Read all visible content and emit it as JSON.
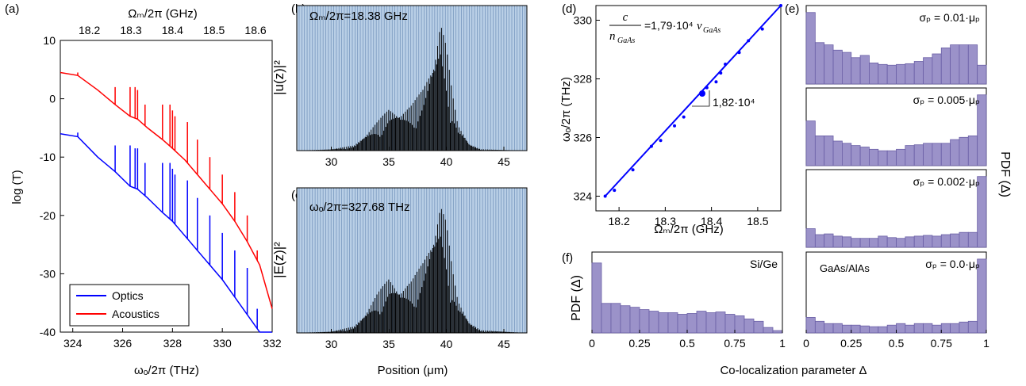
{
  "colors": {
    "optics": "#0000ff",
    "acoustics": "#ff0000",
    "stripe": "#9db8d8",
    "stripe_dark": "#6e8fb8",
    "hist_fill": "#9b92c9",
    "hist_edge": "#6a5fa6",
    "fit_line": "#0000ff"
  },
  "panels": {
    "a": {
      "tag": "(a)",
      "top_axis_label": "Ωₘ/2π (GHz)",
      "xlabel": "ωₒ/2π (THz)",
      "ylabel": "log (T)"
    },
    "b": {
      "tag": "(b)",
      "annotation": "Ωₘ/2π=18.38 GHz",
      "ylabel": "|u(z)|²"
    },
    "c": {
      "tag": "(c)",
      "annotation": "ωₒ/2π=327.68 THz",
      "ylabel": "|E(z)|²",
      "xlabel": "Position (μm)"
    },
    "d": {
      "tag": "(d)",
      "xlabel": "Ωₘ/2π (GHz)",
      "ylabel": "ωₒ/2π (THz)",
      "formula_num": "c",
      "formula_den": "n",
      "formula_den_sub": "GaAs",
      "formula_rhs": "=1,79·10⁴",
      "formula_v": "v",
      "formula_v_sub": "GaAs",
      "slope_label": "1,82·10⁴"
    },
    "e": {
      "tag": "(e)",
      "ylabel": "PDF (Δ)",
      "material": "GaAs/AlAs"
    },
    "f": {
      "tag": "(f)",
      "ylabel": "PDF (Δ)",
      "material": "Si/Ge"
    },
    "shared_xlabel": "Co-localization parameter Δ"
  },
  "chart_data": [
    {
      "id": "a",
      "type": "line",
      "xlabel": "ωₒ/2π (THz)",
      "ylabel": "log (T)",
      "xlim": [
        323.5,
        332
      ],
      "ylim": [
        -40,
        10
      ],
      "x_ticks": [
        324,
        326,
        328,
        330,
        332
      ],
      "y_ticks": [
        10,
        0,
        -10,
        -20,
        -30,
        -40
      ],
      "top_axis": {
        "label": "Ωₘ/2π (GHz)",
        "ticks": [
          18.2,
          18.3,
          18.4,
          18.5,
          18.6
        ]
      },
      "legend": {
        "position": "bottom-left",
        "entries": [
          "Optics",
          "Acoustics"
        ]
      },
      "series": [
        {
          "name": "Optics",
          "x": [
            323.5,
            324.2,
            325.0,
            325.7,
            326.3,
            326.6,
            327.0,
            327.6,
            328.0,
            328.5,
            329.0,
            329.5,
            330.0,
            330.5,
            331.0,
            331.5,
            332.0
          ],
          "y": [
            -6,
            -6.5,
            -10,
            -12.5,
            -15,
            -15.5,
            -17,
            -19.5,
            -21,
            -23.5,
            -26,
            -28.5,
            -31,
            -34,
            -37,
            -40,
            -40
          ],
          "peaks": [
            [
              324.2,
              -5.8
            ],
            [
              325.7,
              -8
            ],
            [
              326.3,
              -8
            ],
            [
              326.5,
              -8.5
            ],
            [
              326.6,
              -8.5
            ],
            [
              326.9,
              -11
            ],
            [
              327.6,
              -11
            ],
            [
              327.9,
              -11
            ],
            [
              328.0,
              -12
            ],
            [
              328.1,
              -13
            ],
            [
              328.6,
              -14
            ],
            [
              329.0,
              -17
            ],
            [
              329.5,
              -20
            ],
            [
              330.0,
              -23
            ],
            [
              330.5,
              -26
            ],
            [
              331.0,
              -29
            ],
            [
              331.4,
              -36
            ]
          ]
        },
        {
          "name": "Acoustics",
          "x": [
            323.5,
            324.2,
            325.0,
            325.7,
            326.3,
            326.6,
            327.0,
            327.6,
            328.0,
            328.5,
            329.0,
            329.5,
            330.0,
            330.5,
            331.0,
            331.5,
            332.0
          ],
          "y": [
            4.5,
            4,
            1.5,
            -1,
            -3,
            -3.5,
            -5,
            -7,
            -8.5,
            -10.5,
            -13,
            -15.5,
            -18,
            -21,
            -24.5,
            -28.5,
            -36
          ],
          "peaks": [
            [
              324.2,
              4.5
            ],
            [
              325.7,
              2
            ],
            [
              326.3,
              2
            ],
            [
              326.5,
              2
            ],
            [
              326.6,
              1.5
            ],
            [
              326.9,
              -1
            ],
            [
              327.6,
              -1
            ],
            [
              327.9,
              -1
            ],
            [
              328.0,
              -2
            ],
            [
              328.1,
              -3
            ],
            [
              328.6,
              -4
            ],
            [
              329.0,
              -7
            ],
            [
              329.5,
              -10
            ],
            [
              330.0,
              -13
            ],
            [
              330.5,
              -16
            ],
            [
              331.0,
              -20
            ],
            [
              331.4,
              -26
            ]
          ]
        }
      ]
    },
    {
      "id": "b",
      "type": "bar",
      "ylabel": "|u(z)|²",
      "xlim": [
        27,
        47
      ],
      "x_ticks": [
        30,
        35,
        40,
        45
      ],
      "profile": {
        "x": [
          27,
          30,
          32,
          33,
          34,
          35,
          36,
          37,
          38,
          39,
          39.5,
          40,
          40.5,
          41,
          42,
          43,
          47
        ],
        "y": [
          0,
          0.01,
          0.04,
          0.12,
          0.22,
          0.32,
          0.28,
          0.35,
          0.48,
          0.72,
          1.0,
          0.8,
          0.45,
          0.2,
          0.05,
          0.01,
          0
        ]
      }
    },
    {
      "id": "c",
      "type": "bar",
      "ylabel": "|E(z)|²",
      "xlabel": "Position (μm)",
      "xlim": [
        27,
        47
      ],
      "x_ticks": [
        30,
        35,
        40,
        45
      ],
      "profile": {
        "x": [
          27,
          30,
          32,
          33,
          34,
          35,
          36,
          37,
          38,
          39,
          39.5,
          40,
          40.5,
          41,
          42,
          43,
          47
        ],
        "y": [
          0,
          0.01,
          0.05,
          0.15,
          0.3,
          0.42,
          0.32,
          0.4,
          0.55,
          0.78,
          1.0,
          0.85,
          0.5,
          0.25,
          0.08,
          0.02,
          0
        ]
      }
    },
    {
      "id": "d",
      "type": "scatter",
      "xlabel": "Ωₘ/2π (GHz)",
      "ylabel": "ωₒ/2π (THz)",
      "xlim": [
        18.15,
        18.55
      ],
      "ylim": [
        323.5,
        330.5
      ],
      "x_ticks": [
        18.2,
        18.3,
        18.4,
        18.5
      ],
      "y_ticks": [
        324,
        326,
        328,
        330
      ],
      "fit": {
        "x": [
          18.17,
          18.55
        ],
        "y": [
          324.0,
          330.5
        ]
      },
      "highlight": [
        18.38,
        327.5
      ],
      "points": [
        [
          18.17,
          324.0
        ],
        [
          18.19,
          324.2
        ],
        [
          18.23,
          324.9
        ],
        [
          18.27,
          325.7
        ],
        [
          18.29,
          325.9
        ],
        [
          18.32,
          326.4
        ],
        [
          18.34,
          326.7
        ],
        [
          18.38,
          327.5
        ],
        [
          18.39,
          327.7
        ],
        [
          18.41,
          327.9
        ],
        [
          18.42,
          328.2
        ],
        [
          18.43,
          328.5
        ],
        [
          18.46,
          328.9
        ],
        [
          18.48,
          329.3
        ],
        [
          18.51,
          329.7
        ],
        [
          18.55,
          330.5
        ]
      ]
    },
    {
      "id": "e1",
      "type": "bar",
      "annotation": "σₚ = 0.01·μₚ",
      "bins": 20,
      "xlim": [
        0,
        1
      ],
      "values": [
        0.95,
        0.55,
        0.52,
        0.45,
        0.42,
        0.35,
        0.38,
        0.28,
        0.26,
        0.25,
        0.26,
        0.27,
        0.3,
        0.35,
        0.4,
        0.48,
        0.52,
        0.52,
        0.52,
        0.25
      ]
    },
    {
      "id": "e2",
      "type": "bar",
      "annotation": "σₚ = 0.005·μₚ",
      "bins": 20,
      "xlim": [
        0,
        1
      ],
      "values": [
        0.6,
        0.4,
        0.4,
        0.33,
        0.3,
        0.27,
        0.25,
        0.22,
        0.2,
        0.2,
        0.22,
        0.27,
        0.28,
        0.3,
        0.3,
        0.3,
        0.35,
        0.38,
        0.4,
        0.95
      ]
    },
    {
      "id": "e3",
      "type": "bar",
      "annotation": "σₚ = 0.002·μₚ",
      "bins": 20,
      "xlim": [
        0,
        1
      ],
      "values": [
        0.25,
        0.17,
        0.18,
        0.15,
        0.14,
        0.12,
        0.12,
        0.12,
        0.15,
        0.13,
        0.12,
        0.14,
        0.15,
        0.16,
        0.15,
        0.17,
        0.18,
        0.2,
        0.2,
        0.95
      ]
    },
    {
      "id": "e4",
      "type": "bar",
      "annotation": "σₚ = 0.0·μₚ",
      "bins": 20,
      "xlim": [
        0,
        1
      ],
      "x_ticks": [
        0,
        0.25,
        0.5,
        0.75,
        1
      ],
      "values": [
        0.2,
        0.15,
        0.12,
        0.12,
        0.1,
        0.1,
        0.09,
        0.08,
        0.08,
        0.1,
        0.12,
        0.1,
        0.12,
        0.12,
        0.1,
        0.12,
        0.12,
        0.14,
        0.15,
        0.95
      ]
    },
    {
      "id": "f",
      "type": "bar",
      "annotation": "Si/Ge",
      "bins": 20,
      "xlim": [
        0,
        1
      ],
      "x_ticks": [
        0,
        0.25,
        0.5,
        0.75,
        1
      ],
      "values": [
        0.9,
        0.38,
        0.38,
        0.35,
        0.33,
        0.3,
        0.28,
        0.26,
        0.26,
        0.24,
        0.25,
        0.28,
        0.26,
        0.27,
        0.24,
        0.22,
        0.18,
        0.15,
        0.07,
        0.03
      ]
    }
  ]
}
